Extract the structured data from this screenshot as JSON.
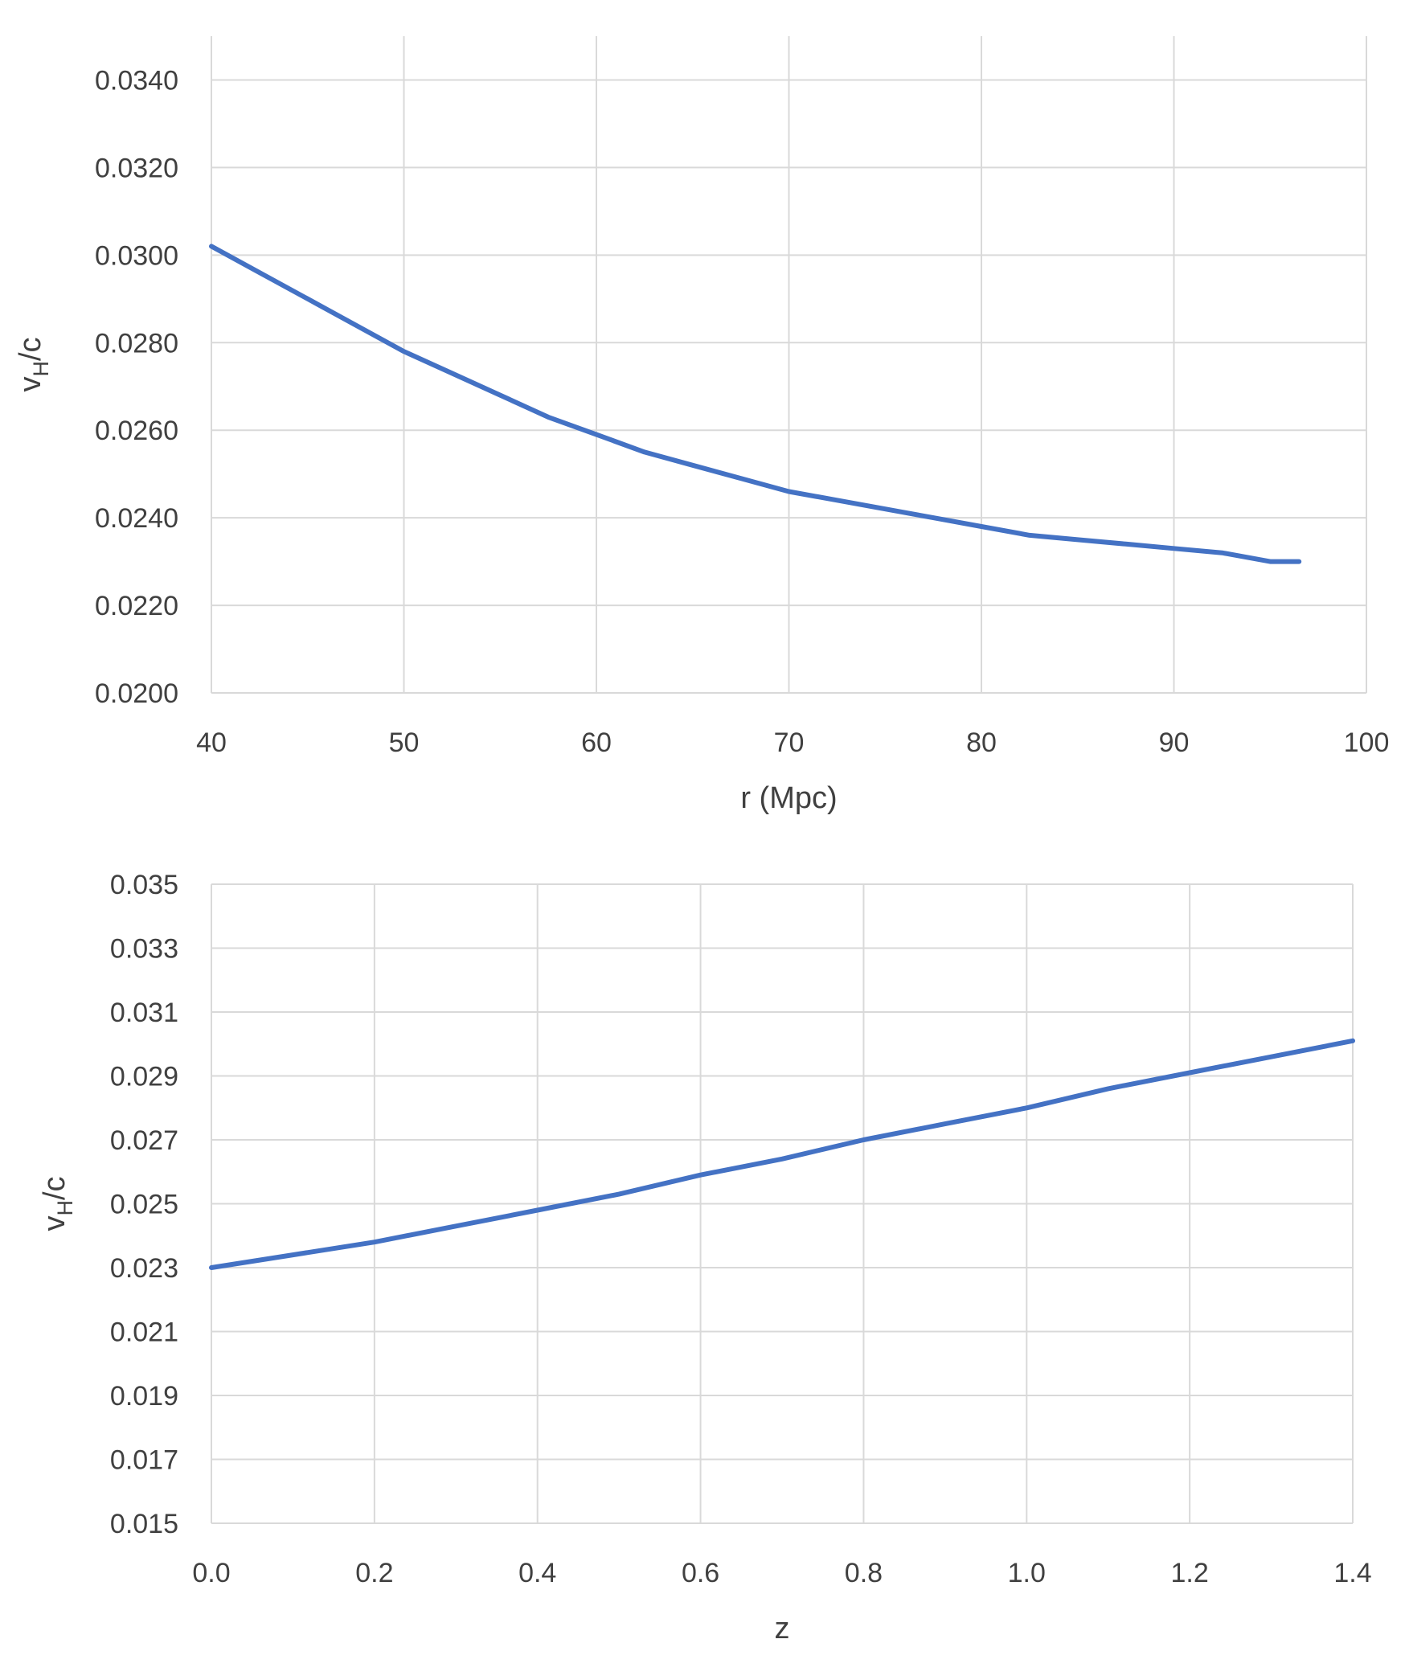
{
  "chart_data": [
    {
      "type": "line",
      "xlabel": "r (Mpc)",
      "ylabel": {
        "main": "v",
        "sub": "H",
        "tail": "/c"
      },
      "xlim": [
        40,
        100
      ],
      "ylim": [
        0.02,
        0.035
      ],
      "xticks": [
        "40",
        "50",
        "60",
        "70",
        "80",
        "90",
        "100"
      ],
      "yticks": [
        "0.0200",
        "0.0220",
        "0.0240",
        "0.0260",
        "0.0280",
        "0.0300",
        "0.0320",
        "0.0340"
      ],
      "grid": true,
      "legend": "none",
      "color": "#4472c4",
      "series": [
        {
          "x": [
            40,
            42.5,
            45,
            47.5,
            50,
            52.5,
            55,
            57.5,
            60,
            62.5,
            65,
            67.5,
            70,
            72.5,
            75,
            77.5,
            80,
            82.5,
            85,
            87.5,
            90,
            92.5,
            95,
            96.5
          ],
          "y": [
            0.0302,
            0.0296,
            0.029,
            0.0284,
            0.0278,
            0.0273,
            0.0268,
            0.0263,
            0.0259,
            0.0255,
            0.0252,
            0.0249,
            0.0246,
            0.0244,
            0.0242,
            0.024,
            0.0238,
            0.0236,
            0.0235,
            0.0234,
            0.0233,
            0.0232,
            0.023,
            0.023
          ]
        }
      ]
    },
    {
      "type": "line",
      "xlabel": "z",
      "ylabel": {
        "main": "v",
        "sub": "H",
        "tail": "/c"
      },
      "xlim": [
        0,
        1.4
      ],
      "ylim": [
        0.015,
        0.035
      ],
      "xticks": [
        "0.0",
        "0.2",
        "0.4",
        "0.6",
        "0.8",
        "1.0",
        "1.2",
        "1.4"
      ],
      "yticks": [
        "0.015",
        "0.017",
        "0.019",
        "0.021",
        "0.023",
        "0.025",
        "0.027",
        "0.029",
        "0.031",
        "0.033",
        "0.035"
      ],
      "grid": true,
      "legend": "none",
      "color": "#4472c4",
      "series": [
        {
          "x": [
            0,
            0.1,
            0.2,
            0.3,
            0.4,
            0.5,
            0.6,
            0.7,
            0.8,
            0.9,
            1.0,
            1.1,
            1.2,
            1.3,
            1.4
          ],
          "y": [
            0.023,
            0.0234,
            0.0238,
            0.0243,
            0.0248,
            0.0253,
            0.0259,
            0.0264,
            0.027,
            0.0275,
            0.028,
            0.0286,
            0.0291,
            0.0296,
            0.0301
          ]
        }
      ]
    }
  ]
}
